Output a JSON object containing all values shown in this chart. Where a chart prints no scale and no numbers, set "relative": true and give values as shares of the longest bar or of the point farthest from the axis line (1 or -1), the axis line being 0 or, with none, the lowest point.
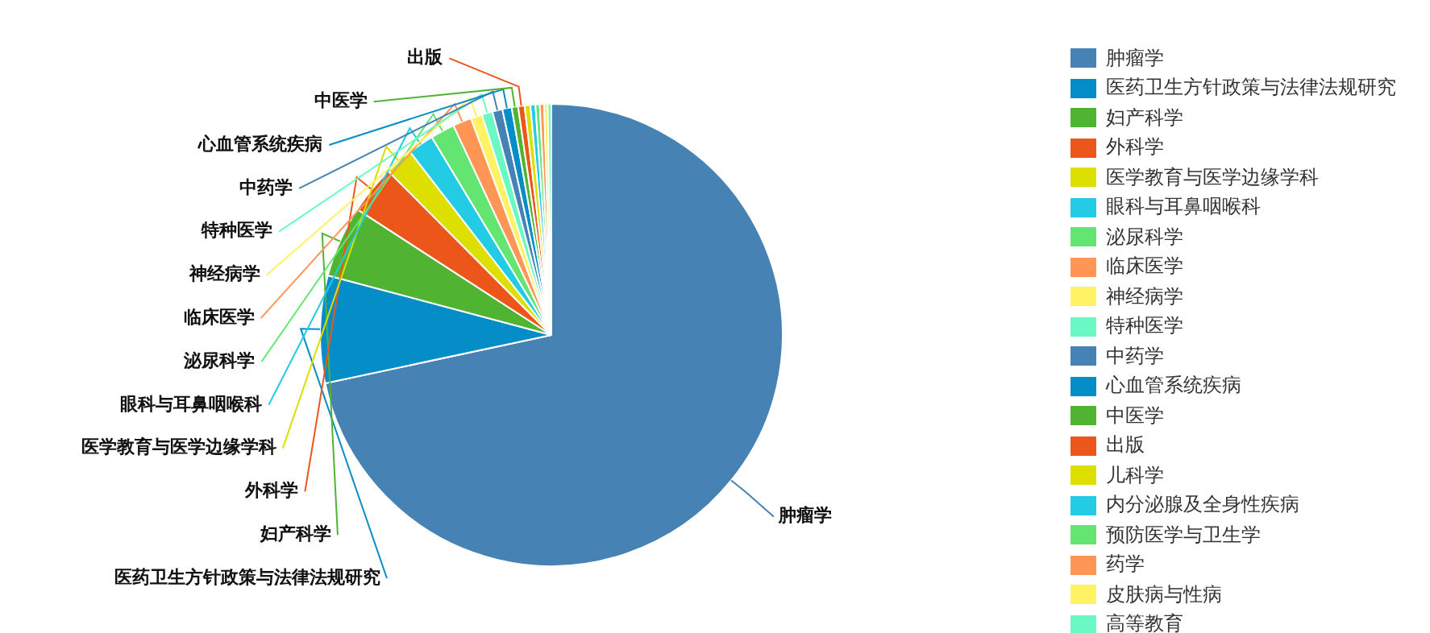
{
  "chart_data": {
    "type": "pie",
    "relative": true,
    "legend": "right",
    "categories": [
      "肿瘤学",
      "医药卫生方针政策与法律法规研究",
      "妇产科学",
      "外科学",
      "医学教育与医学边缘学科",
      "眼科与耳鼻咽喉科",
      "泌尿科学",
      "临床医学",
      "神经病学",
      "特种医学",
      "中药学",
      "心血管系统疾病",
      "中医学",
      "出版",
      "儿科学",
      "内分泌腺及全身性疾病",
      "预防医学与卫生学",
      "药学",
      "皮肤病与性病",
      "高等教育"
    ],
    "values": [
      71.65,
      7.5,
      5,
      3.4,
      2,
      1.8,
      1.7,
      1.3,
      0.8,
      0.75,
      0.7,
      0.65,
      0.45,
      0.45,
      0.4,
      0.35,
      0.3,
      0.3,
      0.25,
      0.25
    ],
    "colors": [
      "#4682b4",
      "#058dc7",
      "#50b432",
      "#ed561b",
      "#dddf00",
      "#24cbe5",
      "#64e572",
      "#ff9655",
      "#fff263",
      "#6af9c4",
      "#4682b4",
      "#058dc7",
      "#50b432",
      "#ed561b",
      "#dddf00",
      "#24cbe5",
      "#64e572",
      "#ff9655",
      "#fff263",
      "#6af9c4"
    ]
  }
}
